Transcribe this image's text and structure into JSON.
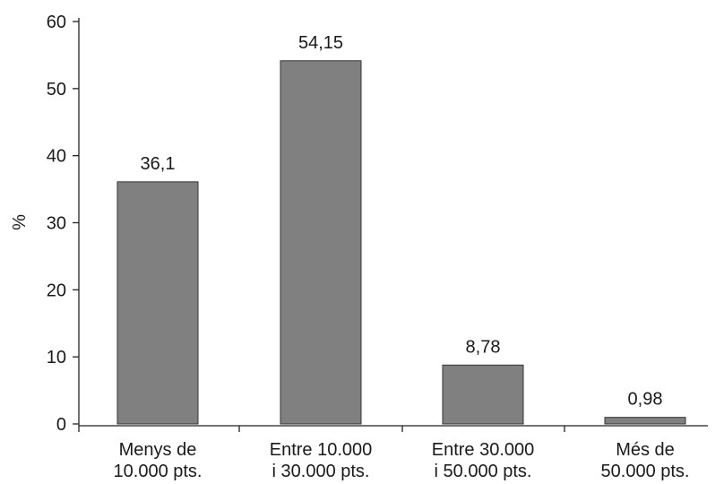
{
  "chart_data": {
    "type": "bar",
    "categories": [
      [
        "Menys de",
        "10.000 pts."
      ],
      [
        "Entre 10.000",
        "i 30.000 pts."
      ],
      [
        "Entre 30.000",
        "i 50.000 pts."
      ],
      [
        "Més de",
        "50.000 pts."
      ]
    ],
    "values": [
      36.1,
      54.15,
      8.78,
      0.98
    ],
    "value_labels": [
      "36,1",
      "54,15",
      "8,78",
      "0,98"
    ],
    "ylabel": "%",
    "ylim": [
      0,
      60
    ],
    "yticks": [
      0,
      10,
      20,
      30,
      40,
      50,
      60
    ],
    "grid": false,
    "bar_color": "#808080"
  }
}
